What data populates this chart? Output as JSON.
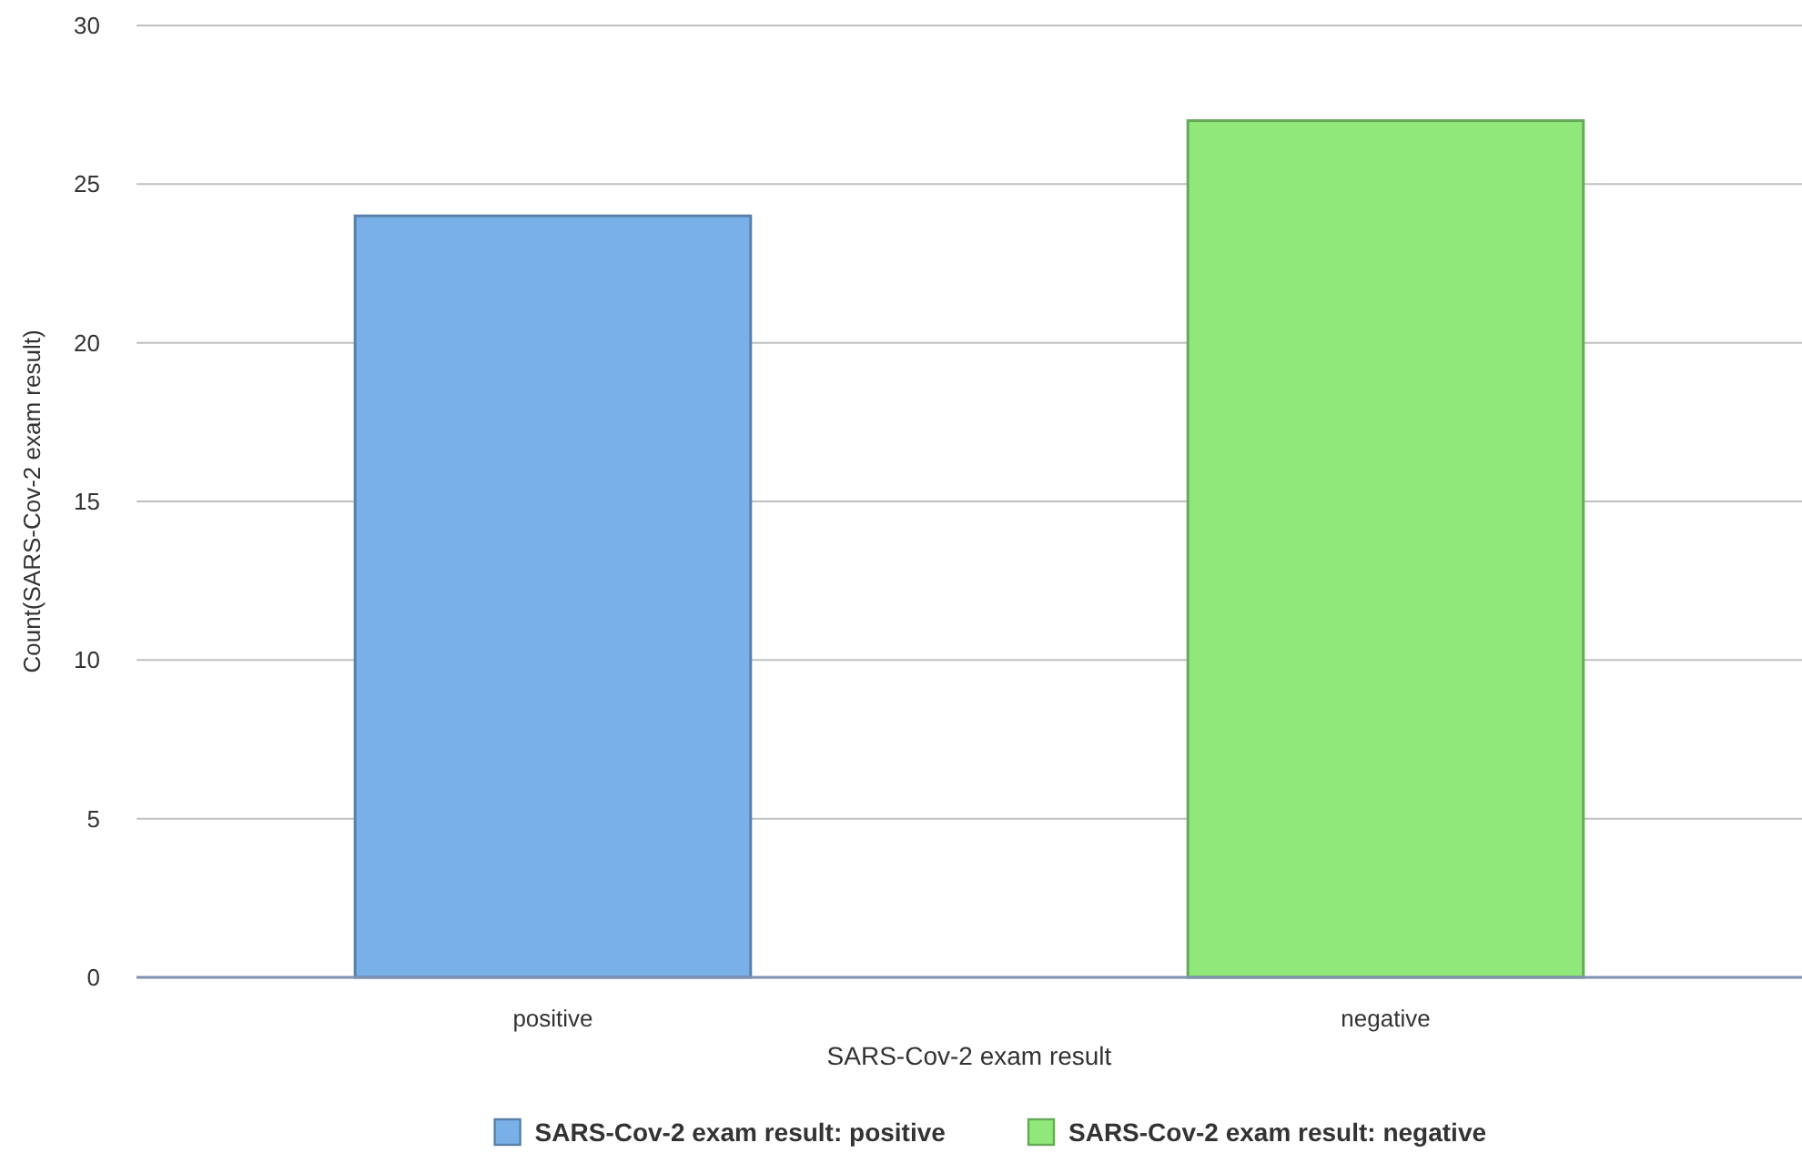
{
  "chart_data": {
    "type": "bar",
    "xlabel": "SARS-Cov-2 exam result",
    "ylabel": "Count(SARS-Cov-2 exam result)",
    "categories": [
      "positive",
      "negative"
    ],
    "series": [
      {
        "name": "SARS-Cov-2 exam result: positive",
        "color": "#7ab0e8",
        "values": [
          24,
          null
        ]
      },
      {
        "name": "SARS-Cov-2 exam result: negative",
        "color": "#90e87a",
        "values": [
          null,
          27
        ]
      }
    ],
    "ylim": [
      0,
      30
    ],
    "yticks": [
      0,
      5,
      10,
      15,
      20,
      25,
      30
    ],
    "grid": "y",
    "legend": "bottom"
  }
}
